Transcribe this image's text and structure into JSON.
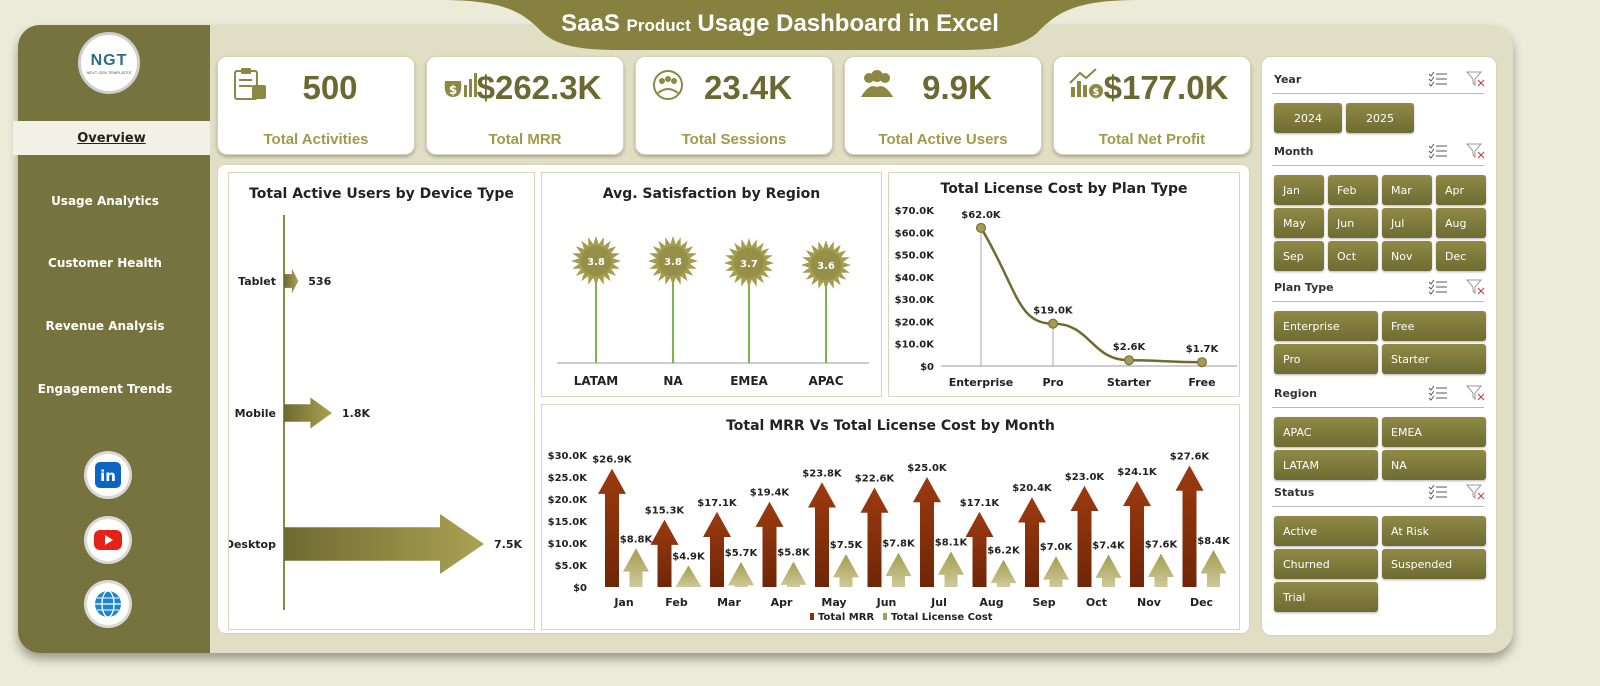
{
  "title": {
    "main_left": "SaaS ",
    "small": "Product",
    "main_right": " Usage Dashboard in Excel"
  },
  "logo": {
    "text": "NGT",
    "sub": "NEXT GEN TEMPLATES"
  },
  "nav": [
    {
      "label": "Overview",
      "active": true
    },
    {
      "label": "Usage Analytics"
    },
    {
      "label": "Customer Health"
    },
    {
      "label": "Revenue Analysis"
    },
    {
      "label": "Engagement Trends"
    }
  ],
  "social": [
    {
      "icon": "linkedin-icon",
      "text": "in",
      "color": "#0a66c2"
    },
    {
      "icon": "youtube-icon",
      "color": "#e62117"
    },
    {
      "icon": "globe-icon",
      "color": "#1d86c9"
    }
  ],
  "kpis": [
    {
      "value": "500",
      "label": "Total Activities",
      "icon": "clipboard-icon"
    },
    {
      "value": "$262.3K",
      "label": "Total MRR",
      "icon": "money-bag-chart-icon"
    },
    {
      "value": "23.4K",
      "label": "Total Sessions",
      "icon": "session-icon"
    },
    {
      "value": "9.9K",
      "label": "Total Active Users",
      "icon": "users-icon"
    },
    {
      "value": "$177.0K",
      "label": "Total Net Profit",
      "icon": "profit-chart-icon"
    }
  ],
  "colors": {
    "olive": "#77733e",
    "olive_light": "#a09a4a",
    "brown": "#8b2f0a",
    "accent_green": "#7ab648"
  },
  "chart_data": [
    {
      "type": "bar",
      "title": "Total Active Users by Device Type",
      "categories": [
        "Tablet",
        "Mobile",
        "Desktop"
      ],
      "values": [
        536,
        1800,
        7500
      ],
      "data_labels": [
        "536",
        "1.8K",
        "7.5K"
      ]
    },
    {
      "type": "scatter",
      "title": "Avg. Satisfaction by Region",
      "categories": [
        "LATAM",
        "NA",
        "EMEA",
        "APAC"
      ],
      "values": [
        3.8,
        3.8,
        3.7,
        3.6
      ],
      "data_labels": [
        "3.8",
        "3.8",
        "3.7",
        "3.6"
      ]
    },
    {
      "type": "line",
      "title": "Total License Cost by Plan Type",
      "categories": [
        "Enterprise",
        "Pro",
        "Starter",
        "Free"
      ],
      "values": [
        62000,
        19000,
        2600,
        1700
      ],
      "data_labels": [
        "$62.0K",
        "$19.0K",
        "$2.6K",
        "$1.7K"
      ],
      "yticks": [
        "$0",
        "$10.0K",
        "$20.0K",
        "$30.0K",
        "$40.0K",
        "$50.0K",
        "$60.0K",
        "$70.0K"
      ],
      "ylim": [
        0,
        70000
      ]
    },
    {
      "type": "bar",
      "title": "Total MRR Vs Total License Cost by Month",
      "categories": [
        "Jan",
        "Feb",
        "Mar",
        "Apr",
        "May",
        "Jun",
        "Jul",
        "Aug",
        "Sep",
        "Oct",
        "Nov",
        "Dec"
      ],
      "series": [
        {
          "name": "Total MRR",
          "values": [
            26900,
            15300,
            17100,
            19400,
            23800,
            22600,
            25000,
            17100,
            20400,
            23000,
            24100,
            27600
          ],
          "labels": [
            "$26.9K",
            "$15.3K",
            "$17.1K",
            "$19.4K",
            "$23.8K",
            "$22.6K",
            "$25.0K",
            "$17.1K",
            "$20.4K",
            "$23.0K",
            "$24.1K",
            "$27.6K"
          ]
        },
        {
          "name": "Total License Cost",
          "values": [
            8800,
            4900,
            5700,
            5800,
            7500,
            7800,
            8100,
            6200,
            7000,
            7400,
            7600,
            8400
          ],
          "labels": [
            "$8.8K",
            "$4.9K",
            "$5.7K",
            "$5.8K",
            "$7.5K",
            "$7.8K",
            "$8.1K",
            "$6.2K",
            "$7.0K",
            "$7.4K",
            "$7.6K",
            "$8.4K"
          ]
        }
      ],
      "yticks": [
        "$0",
        "$5.0K",
        "$10.0K",
        "$15.0K",
        "$20.0K",
        "$25.0K",
        "$30.0K"
      ],
      "ylim": [
        0,
        30000
      ],
      "legend": "bottom"
    }
  ],
  "slicers": [
    {
      "name": "Year",
      "items": [
        "2024",
        "2025"
      ]
    },
    {
      "name": "Month",
      "items": [
        "Jan",
        "Feb",
        "Mar",
        "Apr",
        "May",
        "Jun",
        "Jul",
        "Aug",
        "Sep",
        "Oct",
        "Nov",
        "Dec"
      ]
    },
    {
      "name": "Plan Type",
      "items": [
        "Enterprise",
        "Free",
        "Pro",
        "Starter"
      ]
    },
    {
      "name": "Region",
      "items": [
        "APAC",
        "EMEA",
        "LATAM",
        "NA"
      ]
    },
    {
      "name": "Status",
      "items": [
        "Active",
        "At Risk",
        "Churned",
        "Suspended",
        "Trial"
      ]
    }
  ]
}
